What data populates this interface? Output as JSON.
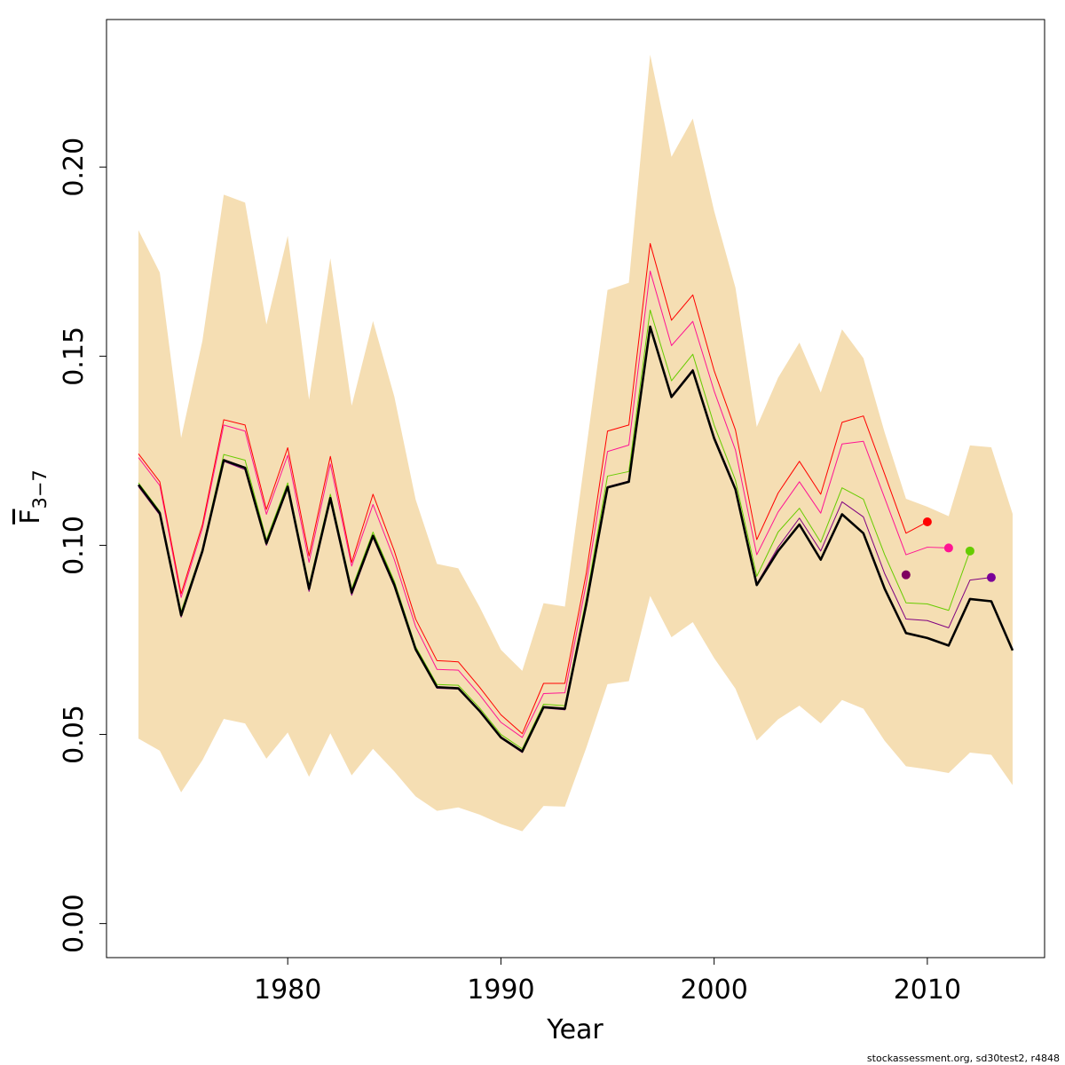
{
  "chart_data": {
    "type": "line",
    "title": "",
    "xlabel": "Year",
    "ylabel": {
      "base": "F",
      "subscript": "3−7"
    },
    "xlim": [
      1971.5,
      2015.5
    ],
    "ylim": [
      -0.009,
      0.239
    ],
    "x_ticks": [
      1980,
      1990,
      2000,
      2010
    ],
    "x_tick_labels": [
      "1980",
      "1990",
      "2000",
      "2010"
    ],
    "y_ticks": [
      0.0,
      0.05,
      0.1,
      0.15,
      0.2
    ],
    "y_tick_labels": [
      "0.00",
      "0.05",
      "0.10",
      "0.15",
      "0.20"
    ],
    "grid": false,
    "band": {
      "name": "confidence interval",
      "color": "#F5DEB3",
      "x": [
        1973,
        1974,
        1975,
        1976,
        1977,
        1978,
        1979,
        1980,
        1981,
        1982,
        1983,
        1984,
        1985,
        1986,
        1987,
        1988,
        1989,
        1990,
        1991,
        1992,
        1993,
        1994,
        1995,
        1996,
        1997,
        1998,
        1999,
        2000,
        2001,
        2002,
        2003,
        2004,
        2005,
        2006,
        2007,
        2008,
        2009,
        2010,
        2011,
        2012,
        2013,
        2014
      ],
      "lower": [
        0.0489,
        0.0457,
        0.0347,
        0.0432,
        0.0541,
        0.0529,
        0.0436,
        0.0505,
        0.0388,
        0.0503,
        0.0392,
        0.0462,
        0.0402,
        0.0336,
        0.0298,
        0.0307,
        0.0288,
        0.0263,
        0.0244,
        0.0311,
        0.0309,
        0.0464,
        0.0633,
        0.0641,
        0.0866,
        0.0757,
        0.0797,
        0.0702,
        0.0621,
        0.0484,
        0.054,
        0.0576,
        0.0529,
        0.0591,
        0.0568,
        0.0483,
        0.0416,
        0.0408,
        0.0398,
        0.0452,
        0.0446,
        0.0366
      ],
      "upper": [
        0.1833,
        0.1721,
        0.1284,
        0.1541,
        0.1927,
        0.1906,
        0.1584,
        0.1818,
        0.1385,
        0.1759,
        0.1369,
        0.1593,
        0.1393,
        0.1121,
        0.0951,
        0.0939,
        0.0837,
        0.0724,
        0.0668,
        0.0847,
        0.0838,
        0.1254,
        0.1675,
        0.1694,
        0.2297,
        0.2027,
        0.2128,
        0.1884,
        0.1681,
        0.1313,
        0.1443,
        0.1536,
        0.1404,
        0.1571,
        0.1495,
        0.1298,
        0.1123,
        0.1102,
        0.1077,
        0.1264,
        0.1259,
        0.1083
      ]
    },
    "series": [
      {
        "color": "#000000",
        "width": 2.6,
        "x": [
          1973,
          1974,
          1975,
          1976,
          1977,
          1978,
          1979,
          1980,
          1981,
          1982,
          1983,
          1984,
          1985,
          1986,
          1987,
          1988,
          1989,
          1990,
          1991,
          1992,
          1993,
          1994,
          1995,
          1996,
          1997,
          1998,
          1999,
          2000,
          2001,
          2002,
          2003,
          2004,
          2005,
          2006,
          2007,
          2008,
          2009,
          2010,
          2011,
          2012,
          2013,
          2014
        ],
        "values": [
          0.116,
          0.1085,
          0.0815,
          0.0985,
          0.1225,
          0.1205,
          0.1005,
          0.1155,
          0.0885,
          0.1125,
          0.0875,
          0.1025,
          0.0895,
          0.0725,
          0.0625,
          0.0622,
          0.0562,
          0.0492,
          0.0455,
          0.0572,
          0.0568,
          0.0843,
          0.1153,
          0.1168,
          0.1578,
          0.1392,
          0.1462,
          0.1283,
          0.1148,
          0.0895,
          0.0985,
          0.1055,
          0.0962,
          0.1082,
          0.1032,
          0.0885,
          0.0768,
          0.0755,
          0.0735,
          0.0858,
          0.0852,
          0.0722
        ]
      },
      {
        "color": "#800080",
        "width": 1.0,
        "x": [
          1973,
          1974,
          1975,
          1976,
          1977,
          1978,
          1979,
          1980,
          1981,
          1982,
          1983,
          1984,
          1985,
          1986,
          1987,
          1988,
          1989,
          1990,
          1991,
          1992,
          1993,
          1994,
          1995,
          1996,
          1997,
          1998,
          1999,
          2000,
          2001,
          2002,
          2003,
          2004,
          2005,
          2006,
          2007,
          2008,
          2009,
          2010,
          2011,
          2012,
          2013
        ],
        "values": [
          0.1155,
          0.108,
          0.081,
          0.098,
          0.1222,
          0.12,
          0.1,
          0.115,
          0.0878,
          0.112,
          0.0868,
          0.102,
          0.089,
          0.0722,
          0.0622,
          0.062,
          0.056,
          0.049,
          0.0452,
          0.057,
          0.0565,
          0.0845,
          0.1155,
          0.117,
          0.158,
          0.1395,
          0.1465,
          0.1288,
          0.1152,
          0.0898,
          0.0995,
          0.1072,
          0.0985,
          0.1115,
          0.1075,
          0.0925,
          0.0805,
          0.0801,
          0.0782,
          0.0908,
          0.0915
        ]
      },
      {
        "color": "#66CC00",
        "width": 1.0,
        "x": [
          1973,
          1974,
          1975,
          1976,
          1977,
          1978,
          1979,
          1980,
          1981,
          1982,
          1983,
          1984,
          1985,
          1986,
          1987,
          1988,
          1989,
          1990,
          1991,
          1992,
          1993,
          1994,
          1995,
          1996,
          1997,
          1998,
          1999,
          2000,
          2001,
          2002,
          2003,
          2004,
          2005,
          2006,
          2007,
          2008,
          2009,
          2010,
          2011,
          2012
        ],
        "values": [
          0.1165,
          0.109,
          0.0825,
          0.099,
          0.124,
          0.1225,
          0.1015,
          0.1165,
          0.0895,
          0.1135,
          0.0885,
          0.1035,
          0.0905,
          0.0732,
          0.0632,
          0.063,
          0.057,
          0.05,
          0.0462,
          0.058,
          0.0576,
          0.0858,
          0.1183,
          0.1195,
          0.1622,
          0.1435,
          0.1505,
          0.1318,
          0.1172,
          0.0918,
          0.1035,
          0.1098,
          0.1008,
          0.1152,
          0.1122,
          0.0975,
          0.0848,
          0.0845,
          0.0828,
          0.0985
        ]
      },
      {
        "color": "#FF1493",
        "width": 1.0,
        "x": [
          1973,
          1974,
          1975,
          1976,
          1977,
          1978,
          1979,
          1980,
          1981,
          1982,
          1983,
          1984,
          1985,
          1986,
          1987,
          1988,
          1989,
          1990,
          1991,
          1992,
          1993,
          1994,
          1995,
          1996,
          1997,
          1998,
          1999,
          2000,
          2001,
          2002,
          2003,
          2004,
          2005,
          2006,
          2007,
          2008,
          2009,
          2010,
          2011
        ],
        "values": [
          0.1232,
          0.1158,
          0.0862,
          0.1045,
          0.1318,
          0.1302,
          0.1082,
          0.1238,
          0.0955,
          0.1215,
          0.0945,
          0.1108,
          0.0962,
          0.0785,
          0.0672,
          0.067,
          0.0605,
          0.0532,
          0.0492,
          0.0608,
          0.061,
          0.0898,
          0.1248,
          0.1265,
          0.1725,
          0.1528,
          0.1592,
          0.1408,
          0.1252,
          0.0975,
          0.1088,
          0.1168,
          0.1085,
          0.1268,
          0.1275,
          0.1125,
          0.0975,
          0.0995,
          0.0993
        ]
      },
      {
        "color": "#FF0000",
        "width": 1.0,
        "x": [
          1973,
          1974,
          1975,
          1976,
          1977,
          1978,
          1979,
          1980,
          1981,
          1982,
          1983,
          1984,
          1985,
          1986,
          1987,
          1988,
          1989,
          1990,
          1991,
          1992,
          1993,
          1994,
          1995,
          1996,
          1997,
          1998,
          1999,
          2000,
          2001,
          2002,
          2003,
          2004,
          2005,
          2006,
          2007,
          2008,
          2009,
          2010
        ],
        "values": [
          0.1242,
          0.1168,
          0.0872,
          0.1055,
          0.1332,
          0.1318,
          0.1095,
          0.1258,
          0.0972,
          0.1235,
          0.0955,
          0.1135,
          0.0985,
          0.0805,
          0.0695,
          0.0692,
          0.0625,
          0.0552,
          0.0502,
          0.0635,
          0.0635,
          0.0925,
          0.1302,
          0.1318,
          0.1798,
          0.1595,
          0.1662,
          0.1462,
          0.1305,
          0.1015,
          0.1138,
          0.1222,
          0.1135,
          0.1325,
          0.1342,
          0.1188,
          0.1032,
          0.1062
        ]
      }
    ],
    "endpoints": [
      {
        "x": 2009,
        "value": 0.0922,
        "color": "#800060"
      },
      {
        "x": 2010,
        "value": 0.1062,
        "color": "#FF0000"
      },
      {
        "x": 2011,
        "value": 0.0993,
        "color": "#FF1493"
      },
      {
        "x": 2012,
        "value": 0.0985,
        "color": "#66CC00"
      },
      {
        "x": 2013,
        "value": 0.0915,
        "color": "#7A0099"
      }
    ]
  },
  "footer": "stockassessment.org, sd30test2, r4848"
}
